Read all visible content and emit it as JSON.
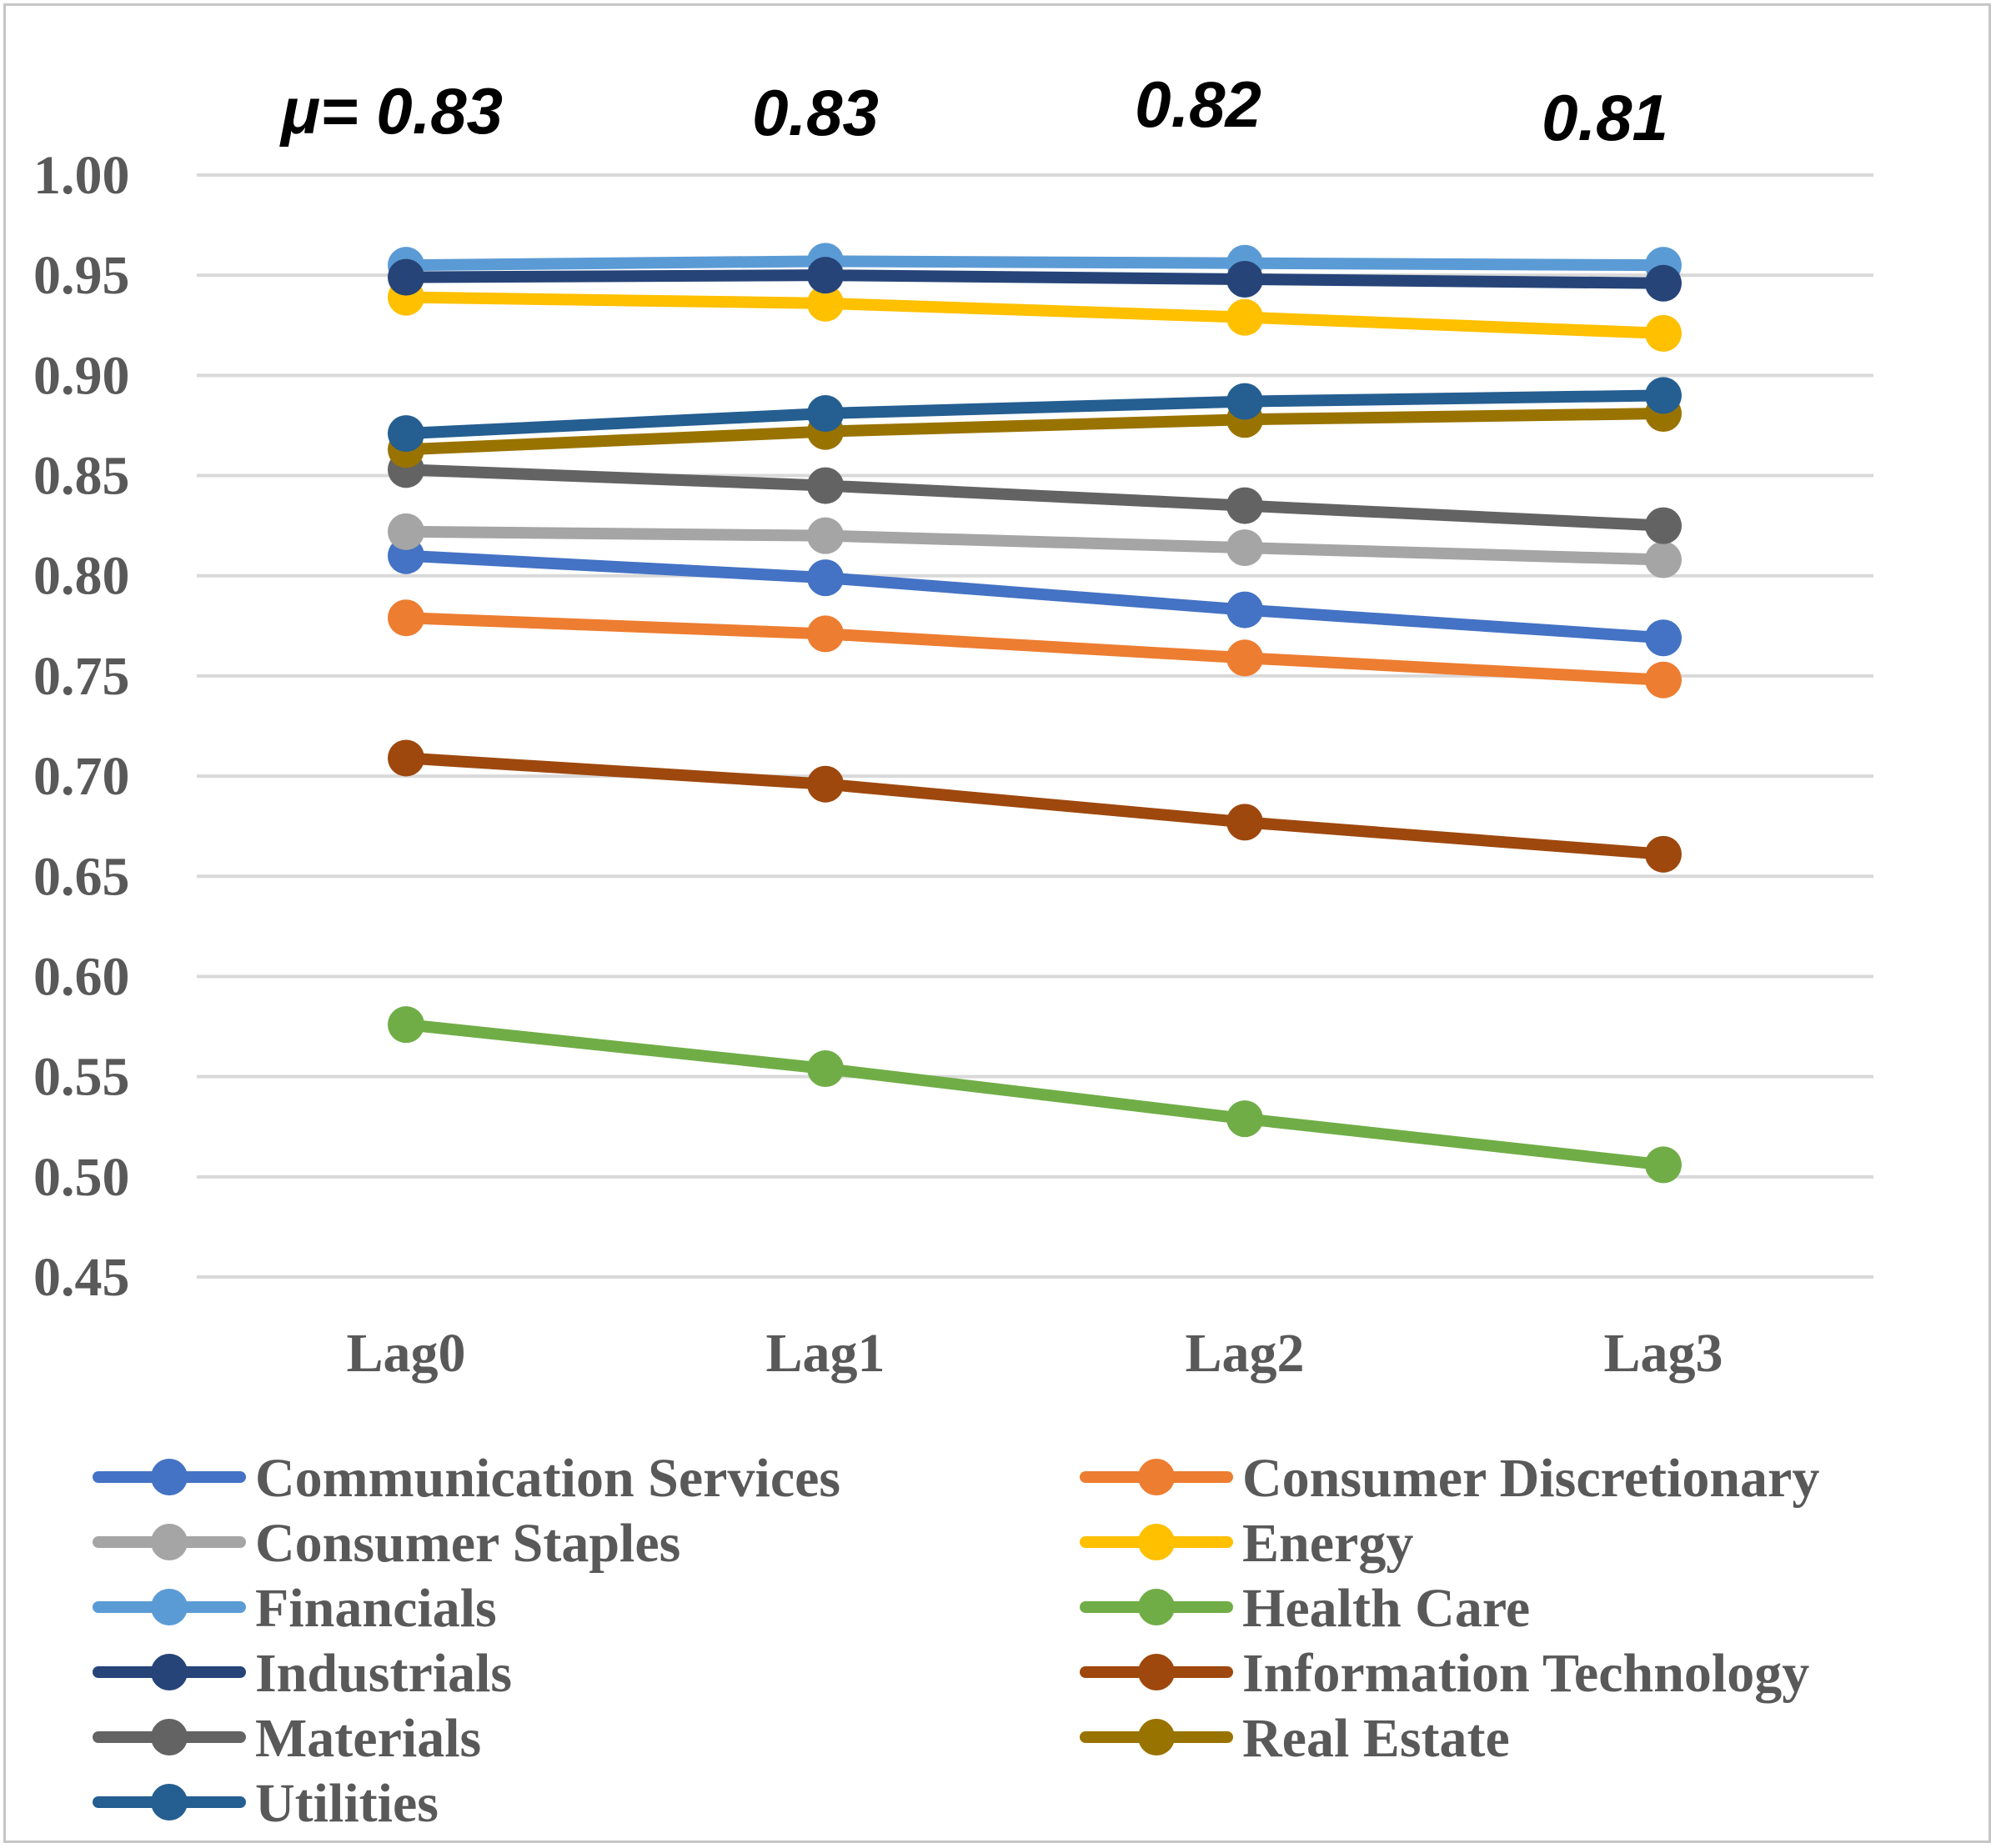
{
  "chart_data": {
    "type": "line",
    "categories": [
      "Lag0",
      "Lag1",
      "Lag2",
      "Lag3"
    ],
    "ylim": [
      0.45,
      1.0
    ],
    "y_ticks": [
      "0.45",
      "0.50",
      "0.55",
      "0.60",
      "0.65",
      "0.70",
      "0.75",
      "0.80",
      "0.85",
      "0.90",
      "0.95",
      "1.00"
    ],
    "grid": true,
    "legend_position": "bottom",
    "mean_labels": [
      "μ= 0.83",
      "0.83",
      "0.82",
      "0.81"
    ],
    "series": [
      {
        "name": "Communication Services",
        "color": "#4472C4",
        "values": [
          0.81,
          0.799,
          0.783,
          0.769
        ]
      },
      {
        "name": "Consumer Discretionary",
        "color": "#ED7D31",
        "values": [
          0.779,
          0.771,
          0.759,
          0.748
        ]
      },
      {
        "name": "Consumer Staples",
        "color": "#A5A5A5",
        "values": [
          0.822,
          0.82,
          0.814,
          0.808
        ]
      },
      {
        "name": "Energy",
        "color": "#FFC000",
        "values": [
          0.939,
          0.936,
          0.929,
          0.921
        ]
      },
      {
        "name": "Financials",
        "color": "#5B9BD5",
        "values": [
          0.955,
          0.957,
          0.956,
          0.955
        ]
      },
      {
        "name": "Health Care",
        "color": "#70AD47",
        "values": [
          0.576,
          0.554,
          0.529,
          0.506
        ]
      },
      {
        "name": "Industrials",
        "color": "#264478",
        "values": [
          0.949,
          0.95,
          0.948,
          0.946
        ]
      },
      {
        "name": "Information Technology",
        "color": "#9E480E",
        "values": [
          0.709,
          0.696,
          0.677,
          0.661
        ]
      },
      {
        "name": "Materials",
        "color": "#636363",
        "values": [
          0.853,
          0.845,
          0.835,
          0.825
        ]
      },
      {
        "name": "Real Estate",
        "color": "#997300",
        "values": [
          0.863,
          0.872,
          0.878,
          0.881
        ]
      },
      {
        "name": "Utilities",
        "color": "#255E91",
        "values": [
          0.871,
          0.881,
          0.887,
          0.89
        ]
      }
    ]
  }
}
